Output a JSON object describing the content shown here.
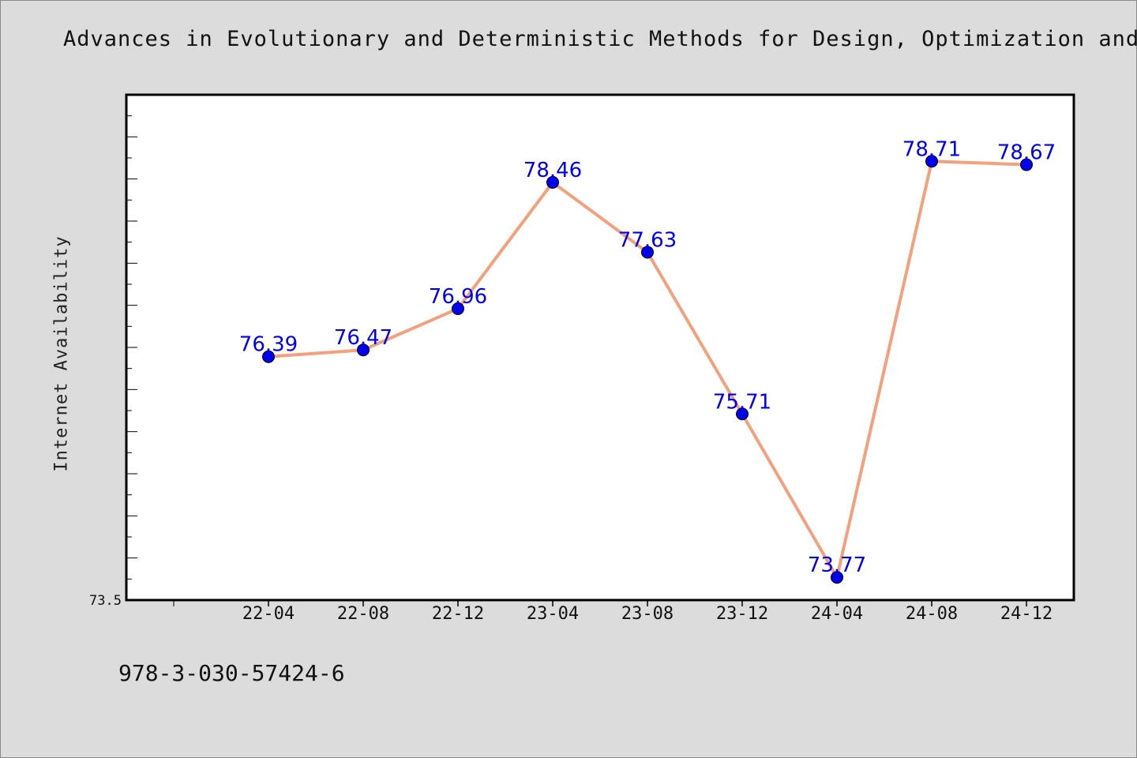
{
  "page": {
    "title": "Advances in Evolutionary and Deterministic Methods for Design, Optimization and",
    "footer": "978-3-030-57424-6"
  },
  "chart_data": {
    "type": "line",
    "title": "Advances in Evolutionary and Deterministic Methods for Design, Optimization and",
    "xlabel": "",
    "ylabel": "Internet Availability",
    "categories": [
      "22-04",
      "22-08",
      "22-12",
      "23-04",
      "23-08",
      "23-12",
      "24-04",
      "24-08",
      "24-12"
    ],
    "series": [
      {
        "values": [
          76.39,
          76.47,
          76.96,
          78.46,
          77.63,
          75.71,
          73.77,
          78.71,
          78.67
        ]
      }
    ],
    "ylim": [
      73.5,
      79.5
    ],
    "ytick_labels": [
      "73.5"
    ],
    "grid": false,
    "legend": "none",
    "colors": {
      "line": "#f4a07c",
      "marker": "#0000ee",
      "data_label": "#0000ee"
    }
  }
}
